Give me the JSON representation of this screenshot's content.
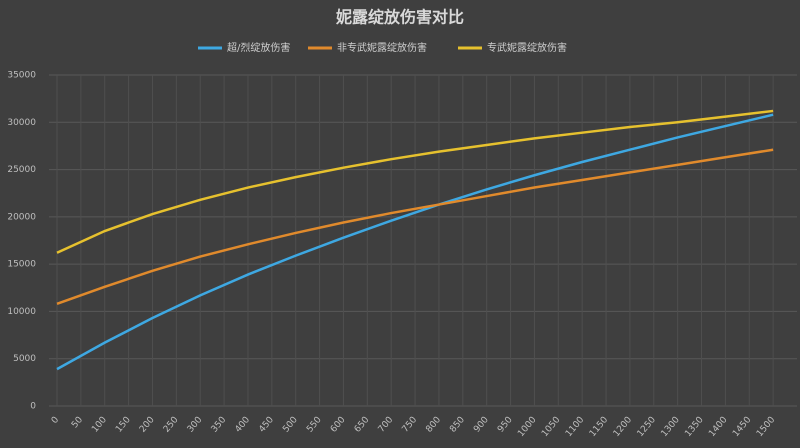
{
  "chart_data": {
    "type": "line",
    "title": "妮露绽放伤害对比",
    "x": [
      0,
      100,
      200,
      300,
      400,
      500,
      600,
      700,
      800,
      900,
      1000,
      1100,
      1200,
      1300,
      1400,
      1500
    ],
    "series": [
      {
        "name": "超/烈绽放伤害",
        "color": "#3ea8e2",
        "values": [
          3900,
          6700,
          9300,
          11700,
          13900,
          15900,
          17800,
          19600,
          21300,
          22900,
          24400,
          25800,
          27100,
          28400,
          29600,
          30800
        ]
      },
      {
        "name": "非专武妮露绽放伤害",
        "color": "#e08a2c",
        "values": [
          10800,
          12600,
          14300,
          15800,
          17100,
          18300,
          19400,
          20400,
          21300,
          22200,
          23100,
          23900,
          24700,
          25500,
          26300,
          27100
        ]
      },
      {
        "name": "专武妮露绽放伤害",
        "color": "#e6c12e",
        "values": [
          16200,
          18500,
          20300,
          21800,
          23100,
          24200,
          25200,
          26100,
          26900,
          27600,
          28300,
          28900,
          29500,
          30000,
          30600,
          31200
        ]
      }
    ],
    "xlim": [
      0,
      1550
    ],
    "xticks": [
      0,
      50,
      100,
      150,
      200,
      250,
      300,
      350,
      400,
      450,
      500,
      550,
      600,
      650,
      700,
      750,
      800,
      850,
      900,
      950,
      1000,
      1050,
      1100,
      1150,
      1200,
      1250,
      1300,
      1350,
      1400,
      1450,
      1500
    ],
    "ylim": [
      0,
      35000
    ],
    "yticks": [
      0,
      5000,
      10000,
      15000,
      20000,
      25000,
      30000,
      35000
    ],
    "grid": true
  }
}
